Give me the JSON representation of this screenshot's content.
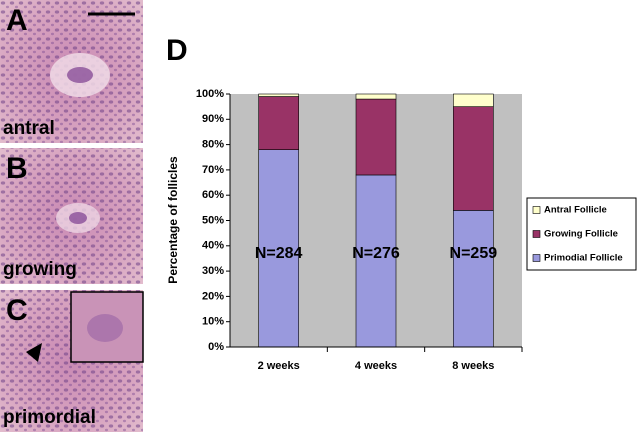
{
  "chart_panel_letter": "D",
  "panels": [
    {
      "letter": "A",
      "label": "antral"
    },
    {
      "letter": "B",
      "label": "growing"
    },
    {
      "letter": "C",
      "label": "primordial"
    }
  ],
  "chart_data": {
    "type": "stacked_bar",
    "y_label": "Percentage of follicles",
    "categories": [
      "2 weeks",
      "4 weeks",
      "8 weeks"
    ],
    "series": [
      {
        "name": "Primodial Follicle",
        "color": "#9999dd",
        "values": [
          78,
          68,
          54
        ]
      },
      {
        "name": "Growing Follicle",
        "color": "#993366",
        "values": [
          21,
          30,
          41
        ]
      },
      {
        "name": "Antral Follicle",
        "color": "#ffffcc",
        "values": [
          1,
          2,
          5
        ]
      }
    ],
    "annotations": [
      "N=284",
      "N=276",
      "N=259"
    ],
    "ylim": [
      0,
      100
    ],
    "yticks": [
      {
        "value": 0,
        "label": "0%"
      },
      {
        "value": 10,
        "label": "10%"
      },
      {
        "value": 20,
        "label": "20%"
      },
      {
        "value": 30,
        "label": "30%"
      },
      {
        "value": 40,
        "label": "40%"
      },
      {
        "value": 50,
        "label": "50%"
      },
      {
        "value": 60,
        "label": "60%"
      },
      {
        "value": 70,
        "label": "70%"
      },
      {
        "value": 80,
        "label": "80%"
      },
      {
        "value": 90,
        "label": "90%"
      },
      {
        "value": 100,
        "label": "100%"
      }
    ],
    "plot_background": "#c0c0c0",
    "legend": "right"
  }
}
